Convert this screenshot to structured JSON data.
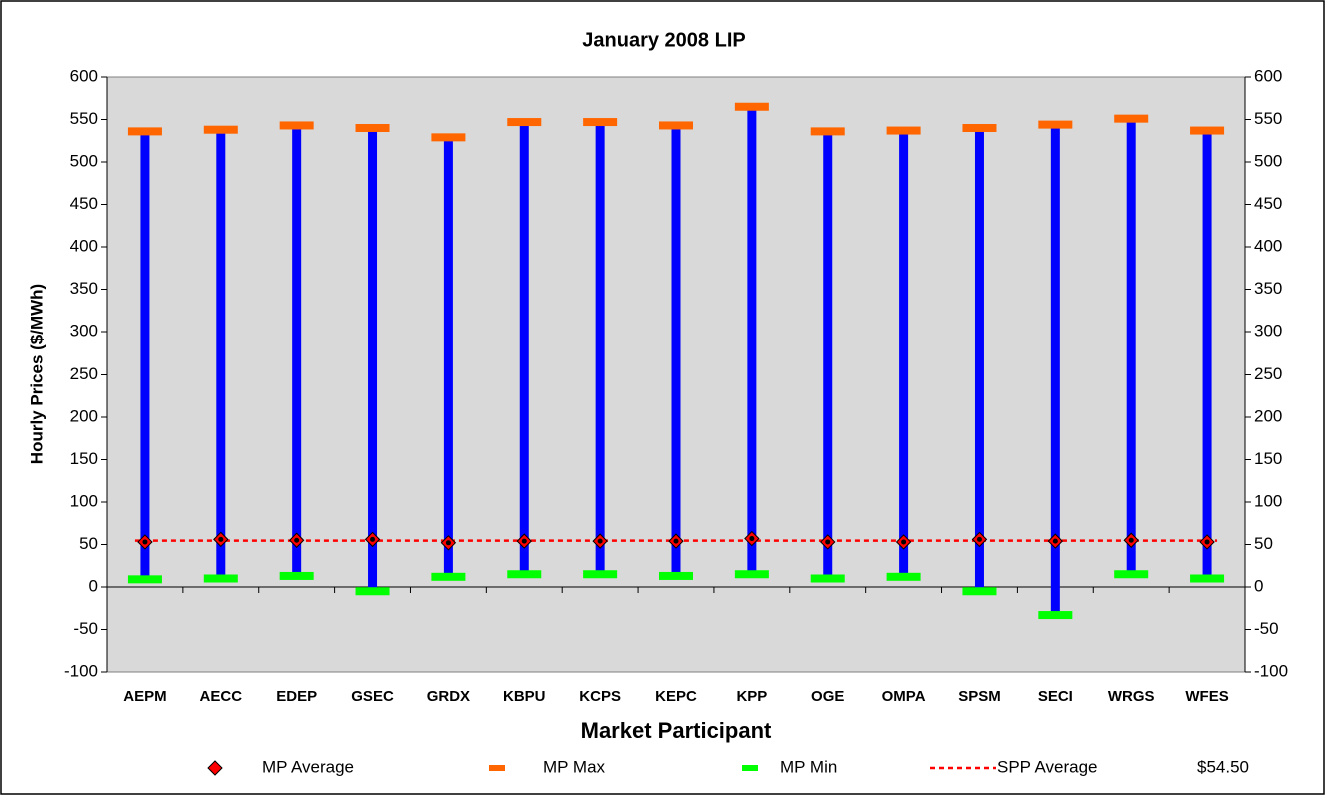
{
  "chart_data": {
    "type": "range",
    "title": "January 2008 LIP",
    "y_label": "Hourly Prices ($/MWh)",
    "x_label": "Market Participant",
    "categories": [
      "AEPM",
      "AECC",
      "EDEP",
      "GSEC",
      "GRDX",
      "KBPU",
      "KCPS",
      "KEPC",
      "KPP",
      "OGE",
      "OMPA",
      "SPSM",
      "SECI",
      "WRGS",
      "WFES"
    ],
    "series": [
      {
        "name": "MP Average",
        "color": "#ff0000",
        "values": [
          53,
          56,
          55,
          56,
          52,
          54,
          54,
          54,
          57,
          53,
          53,
          56,
          54,
          55,
          53
        ]
      },
      {
        "name": "MP Max",
        "color": "#ff6600",
        "values": [
          536,
          538,
          543,
          540,
          529,
          547,
          547,
          543,
          565,
          536,
          537,
          540,
          544,
          551,
          537
        ]
      },
      {
        "name": "MP Min",
        "color": "#00ff00",
        "values": [
          9,
          10,
          13,
          -5,
          12,
          15,
          15,
          13,
          15,
          10,
          12,
          -5,
          -33,
          15,
          10
        ]
      }
    ],
    "range_color": "#0000ff",
    "reference": {
      "name": "SPP Average",
      "color": "#ff0000",
      "value": 54.5,
      "value_label": "$54.50"
    },
    "ylim": [
      -100,
      600
    ],
    "yticks": [
      -100,
      -50,
      0,
      50,
      100,
      150,
      200,
      250,
      300,
      350,
      400,
      450,
      500,
      550,
      600
    ],
    "y2lim": [
      -100,
      600
    ],
    "y2ticks": [
      -100,
      -50,
      0,
      50,
      100,
      150,
      200,
      250,
      300,
      350,
      400,
      450,
      500,
      550,
      600
    ],
    "plot_background": "#d9d9d9"
  }
}
